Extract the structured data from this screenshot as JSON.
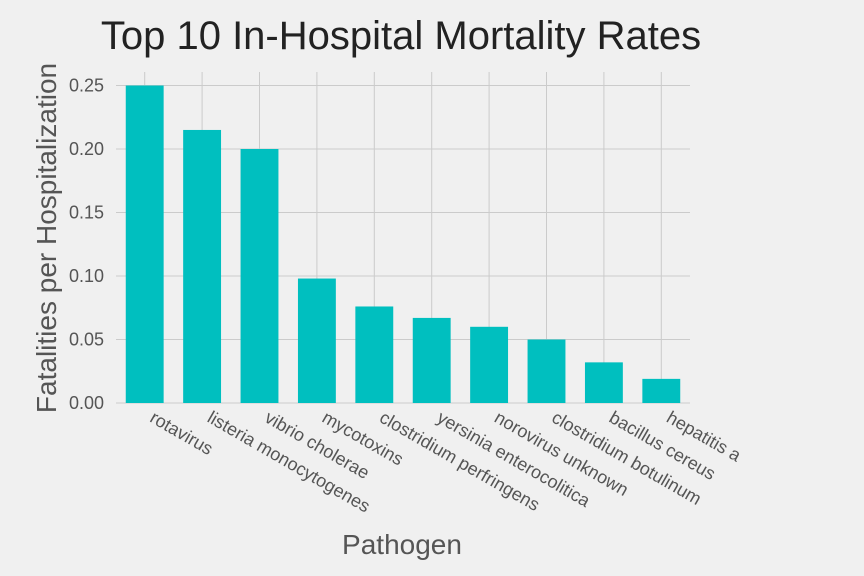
{
  "chart_data": {
    "type": "bar",
    "title": "Top 10 In-Hospital Mortality Rates",
    "xlabel": "Pathogen",
    "ylabel": "Fatalities per Hospitalization",
    "categories": [
      "rotavirus",
      "listeria monocytogenes",
      "vibrio cholerae",
      "mycotoxins",
      "clostridium perfringens",
      "yersinia enterocolitica",
      "norovirus unknown",
      "clostridium botulinum",
      "bacillus cereus",
      "hepatitis a"
    ],
    "values": [
      0.25,
      0.215,
      0.2,
      0.098,
      0.076,
      0.067,
      0.06,
      0.05,
      0.032,
      0.019
    ],
    "ylim": [
      0,
      0.26
    ],
    "yticks": [
      "0.00",
      "0.05",
      "0.10",
      "0.15",
      "0.20",
      "0.25"
    ],
    "grid": true,
    "bar_color": "#00bfbf",
    "background": "#f0f0f0",
    "grid_color": "#cbcbcb"
  }
}
